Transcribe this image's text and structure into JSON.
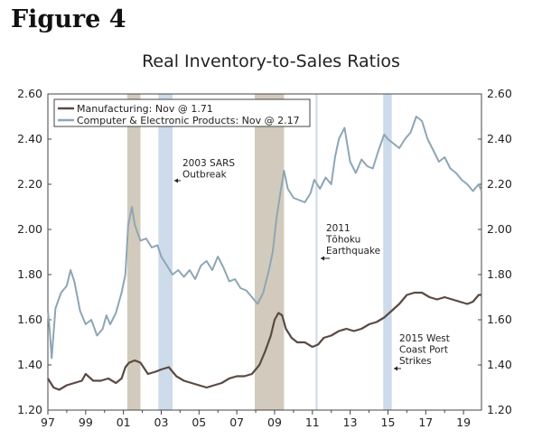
{
  "figure_label": "Figure 4",
  "chart_data": {
    "type": "line",
    "title": "Real Inventory-to-Sales Ratios",
    "xlabel": "",
    "ylabel": "",
    "xlim": [
      1997.0,
      2019.95
    ],
    "ylim": [
      1.2,
      2.6
    ],
    "y_ticks": [
      "1.20",
      "1.40",
      "1.60",
      "1.80",
      "2.00",
      "2.20",
      "2.40",
      "2.60"
    ],
    "y_tick_values": [
      1.2,
      1.4,
      1.6,
      1.8,
      2.0,
      2.2,
      2.4,
      2.6
    ],
    "x_ticks": [
      "97",
      "99",
      "01",
      "03",
      "05",
      "07",
      "09",
      "11",
      "13",
      "15",
      "17",
      "19"
    ],
    "x_tick_values": [
      1997,
      1999,
      2001,
      2003,
      2005,
      2007,
      2009,
      2011,
      2013,
      2015,
      2017,
      2019
    ],
    "recessions": [
      {
        "start": 2001.2,
        "end": 2001.9
      },
      {
        "start": 2007.95,
        "end": 2009.5
      }
    ],
    "events": [
      {
        "start": 2002.85,
        "end": 2003.6
      },
      {
        "start": 2011.17,
        "end": 2011.27
      },
      {
        "start": 2014.75,
        "end": 2015.2
      }
    ],
    "series": [
      {
        "name": "Manufacturing: Nov @ 1.71",
        "color": "#5a4a42",
        "x": [
          1997.0,
          1997.3,
          1997.6,
          1998.0,
          1998.4,
          1998.8,
          1999.0,
          1999.4,
          1999.8,
          2000.2,
          2000.6,
          2000.9,
          2001.1,
          2001.3,
          2001.6,
          2001.9,
          2002.3,
          2002.7,
          2003.0,
          2003.4,
          2003.8,
          2004.2,
          2004.6,
          2005.0,
          2005.4,
          2005.8,
          2006.2,
          2006.6,
          2007.0,
          2007.4,
          2007.8,
          2008.2,
          2008.5,
          2008.8,
          2009.0,
          2009.2,
          2009.4,
          2009.6,
          2009.9,
          2010.2,
          2010.6,
          2011.0,
          2011.3,
          2011.6,
          2012.0,
          2012.4,
          2012.8,
          2013.2,
          2013.6,
          2014.0,
          2014.4,
          2014.8,
          2015.2,
          2015.6,
          2016.0,
          2016.4,
          2016.8,
          2017.2,
          2017.6,
          2018.0,
          2018.4,
          2018.8,
          2019.2,
          2019.5,
          2019.8,
          2019.95
        ],
        "y": [
          1.34,
          1.3,
          1.29,
          1.31,
          1.32,
          1.33,
          1.36,
          1.33,
          1.33,
          1.34,
          1.32,
          1.34,
          1.39,
          1.41,
          1.42,
          1.41,
          1.36,
          1.37,
          1.38,
          1.39,
          1.35,
          1.33,
          1.32,
          1.31,
          1.3,
          1.31,
          1.32,
          1.34,
          1.35,
          1.35,
          1.36,
          1.4,
          1.46,
          1.53,
          1.6,
          1.63,
          1.62,
          1.56,
          1.52,
          1.5,
          1.5,
          1.48,
          1.49,
          1.52,
          1.53,
          1.55,
          1.56,
          1.55,
          1.56,
          1.58,
          1.59,
          1.61,
          1.64,
          1.67,
          1.71,
          1.72,
          1.72,
          1.7,
          1.69,
          1.7,
          1.69,
          1.68,
          1.67,
          1.68,
          1.71,
          1.71
        ]
      },
      {
        "name": "Computer & Electronic Products: Nov @ 2.17",
        "color": "#8ea6b5",
        "x": [
          1997.0,
          1997.1,
          1997.2,
          1997.4,
          1997.7,
          1998.0,
          1998.2,
          1998.4,
          1998.7,
          1999.0,
          1999.3,
          1999.6,
          1999.9,
          2000.1,
          2000.3,
          2000.6,
          2000.9,
          2001.1,
          2001.25,
          2001.45,
          2001.6,
          2001.9,
          2002.2,
          2002.5,
          2002.8,
          2003.0,
          2003.3,
          2003.6,
          2003.9,
          2004.2,
          2004.5,
          2004.8,
          2005.1,
          2005.4,
          2005.7,
          2006.0,
          2006.3,
          2006.6,
          2006.9,
          2007.2,
          2007.5,
          2007.8,
          2008.1,
          2008.4,
          2008.7,
          2008.9,
          2009.1,
          2009.3,
          2009.5,
          2009.7,
          2010.0,
          2010.3,
          2010.6,
          2010.9,
          2011.1,
          2011.4,
          2011.7,
          2012.0,
          2012.2,
          2012.4,
          2012.7,
          2013.0,
          2013.3,
          2013.6,
          2013.9,
          2014.2,
          2014.5,
          2014.8,
          2015.0,
          2015.3,
          2015.6,
          2015.9,
          2016.2,
          2016.5,
          2016.8,
          2017.1,
          2017.4,
          2017.7,
          2018.0,
          2018.3,
          2018.6,
          2018.9,
          2019.2,
          2019.5,
          2019.8,
          2019.95
        ],
        "y": [
          1.64,
          1.55,
          1.43,
          1.65,
          1.72,
          1.75,
          1.82,
          1.77,
          1.64,
          1.58,
          1.6,
          1.53,
          1.56,
          1.62,
          1.58,
          1.63,
          1.72,
          1.8,
          2.02,
          2.1,
          2.02,
          1.95,
          1.96,
          1.92,
          1.93,
          1.88,
          1.84,
          1.8,
          1.82,
          1.79,
          1.82,
          1.78,
          1.84,
          1.86,
          1.82,
          1.88,
          1.83,
          1.77,
          1.78,
          1.74,
          1.73,
          1.7,
          1.67,
          1.72,
          1.82,
          1.9,
          2.05,
          2.16,
          2.26,
          2.18,
          2.14,
          2.13,
          2.12,
          2.16,
          2.22,
          2.18,
          2.23,
          2.2,
          2.32,
          2.4,
          2.45,
          2.3,
          2.25,
          2.31,
          2.28,
          2.27,
          2.35,
          2.42,
          2.4,
          2.38,
          2.36,
          2.4,
          2.43,
          2.5,
          2.48,
          2.4,
          2.35,
          2.3,
          2.32,
          2.27,
          2.25,
          2.22,
          2.2,
          2.17,
          2.2,
          2.17
        ]
      }
    ],
    "annotations": [
      {
        "lines": [
          "2003 SARS",
          "Outbreak"
        ],
        "x": 2003.6,
        "y": 2.22
      },
      {
        "lines": [
          "2011",
          "Tōhoku",
          "Earthquake"
        ],
        "x": 2011.25,
        "y": 1.87
      },
      {
        "lines": [
          "2015 West",
          "Coast Port",
          "Strikes"
        ],
        "x": 2015.0,
        "y": 1.38
      }
    ],
    "legend_position": "top-left"
  }
}
